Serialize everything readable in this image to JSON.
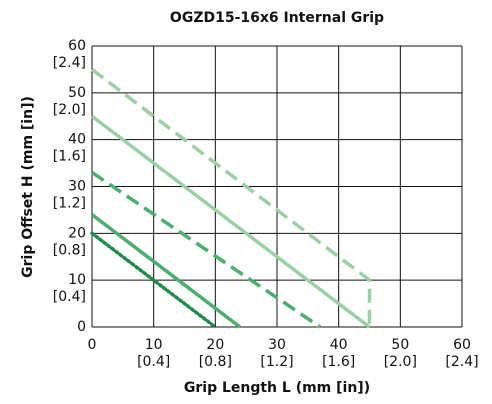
{
  "chart_data": {
    "type": "line",
    "title": "OGZD15-16x6 Internal Grip",
    "xlabel": "Grip Length  L (mm [in])",
    "ylabel": "Grip Offset  H (mm [in])",
    "xlim": [
      0,
      60
    ],
    "ylim": [
      0,
      60
    ],
    "xticks": [
      0,
      {
        "value": 10,
        "label": "10",
        "inch": "[0.4]"
      },
      {
        "value": 20,
        "label": "20",
        "inch": "[0.8]"
      },
      {
        "value": 30,
        "label": "30",
        "inch": "[1.2]"
      },
      {
        "value": 40,
        "label": "40",
        "inch": "[1.6]"
      },
      {
        "value": 50,
        "label": "50",
        "inch": "[2.0]"
      },
      {
        "value": 60,
        "label": "60",
        "inch": "[2.4]"
      }
    ],
    "yticks": [
      0,
      {
        "value": 10,
        "label": "10",
        "inch": "[0.4]"
      },
      {
        "value": 20,
        "label": "20",
        "inch": "[0.8]"
      },
      {
        "value": 30,
        "label": "30",
        "inch": "[1.2]"
      },
      {
        "value": 40,
        "label": "40",
        "inch": "[1.6]"
      },
      {
        "value": 50,
        "label": "50",
        "inch": "[2.0]"
      },
      {
        "value": 60,
        "label": "60",
        "inch": "[2.4]"
      }
    ],
    "grid": true,
    "series": [
      {
        "color": "#1f8a4c",
        "style": "dotted",
        "x": [
          0,
          20
        ],
        "values": [
          20,
          0
        ]
      },
      {
        "color": "#4aae6e",
        "style": "solid",
        "x": [
          0,
          24
        ],
        "values": [
          24,
          0
        ]
      },
      {
        "color": "#4aae6e",
        "style": "dashed",
        "x": [
          0,
          37
        ],
        "values": [
          33,
          0
        ]
      },
      {
        "color": "#9bd0a4",
        "style": "solid",
        "x": [
          0,
          45
        ],
        "values": [
          45,
          0
        ]
      },
      {
        "color": "#9bd0a4",
        "style": "dashed",
        "x": [
          0,
          45,
          45
        ],
        "values": [
          55,
          10,
          0
        ]
      }
    ]
  }
}
